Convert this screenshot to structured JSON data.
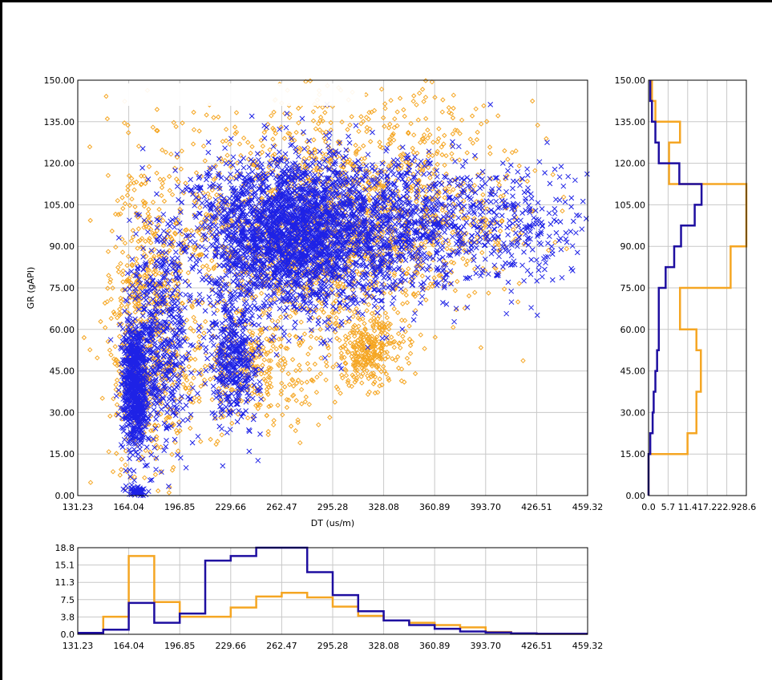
{
  "chart_data": [
    {
      "name": "crossplot",
      "type": "scatter",
      "xlabel": "DT (us/m)",
      "ylabel": "GR (gAPI)",
      "xlim": [
        131.23,
        459.32
      ],
      "ylim": [
        0,
        150
      ],
      "x_ticks": [
        "131.23",
        "164.04",
        "196.85",
        "229.66",
        "262.47",
        "295.28",
        "328.08",
        "360.89",
        "393.70",
        "426.51",
        "459.32"
      ],
      "y_ticks": [
        "0.00",
        "15.00",
        "30.00",
        "45.00",
        "60.00",
        "75.00",
        "90.00",
        "105.00",
        "120.00",
        "135.00",
        "150.00"
      ],
      "grid": true,
      "series": [
        {
          "marker": "diamond",
          "color": "#F5A623",
          "clusters": [
            {
              "cx": 280,
              "cy": 95,
              "sx": 45,
              "sy": 18,
              "n": 1400
            },
            {
              "cx": 175,
              "cy": 60,
              "sx": 12,
              "sy": 30,
              "n": 600
            },
            {
              "cx": 240,
              "cy": 45,
              "sx": 30,
              "sy": 10,
              "n": 350
            },
            {
              "cx": 318,
              "cy": 52,
              "sx": 12,
              "sy": 6,
              "n": 300
            },
            {
              "cx": 360,
              "cy": 100,
              "sx": 35,
              "sy": 15,
              "n": 400
            },
            {
              "cx": 300,
              "cy": 135,
              "sx": 60,
              "sy": 8,
              "n": 150
            }
          ]
        },
        {
          "marker": "x",
          "color": "#1E22E6",
          "clusters": [
            {
              "cx": 270,
              "cy": 95,
              "sx": 30,
              "sy": 14,
              "n": 2600
            },
            {
              "cx": 168,
              "cy": 40,
              "sx": 4,
              "sy": 12,
              "n": 700
            },
            {
              "cx": 185,
              "cy": 55,
              "sx": 10,
              "sy": 20,
              "n": 500
            },
            {
              "cx": 232,
              "cy": 50,
              "sx": 8,
              "sy": 12,
              "n": 400
            },
            {
              "cx": 350,
              "cy": 98,
              "sx": 30,
              "sy": 12,
              "n": 700
            },
            {
              "cx": 420,
              "cy": 95,
              "sx": 20,
              "sy": 12,
              "n": 200
            },
            {
              "cx": 170,
              "cy": 1.5,
              "sx": 3,
              "sy": 0.8,
              "n": 60
            }
          ]
        }
      ]
    },
    {
      "name": "gr-histogram",
      "type": "histogram",
      "x_ticks": [
        "0.0",
        "5.7",
        "11.4",
        "17.2",
        "22.9",
        "28.6"
      ],
      "xlim": [
        0,
        28.6
      ],
      "ylim": [
        0,
        150
      ],
      "bin_edges": [
        0,
        7.5,
        15,
        22.5,
        30,
        37.5,
        45,
        52.5,
        60,
        67.5,
        75,
        82.5,
        90,
        97.5,
        105,
        112.5,
        120,
        127.5,
        135,
        142.5,
        150
      ],
      "series": [
        {
          "color": "#F5A623",
          "values": [
            0,
            0,
            11.4,
            14.0,
            14.0,
            15.3,
            15.3,
            14.0,
            9.2,
            9.2,
            24.0,
            24.0,
            28.6,
            28.6,
            28.6,
            6.0,
            6.0,
            9.2,
            2.0,
            1.0
          ]
        },
        {
          "color": "#1E0EA0",
          "values": [
            0,
            0,
            0.5,
            1.2,
            1.5,
            2.0,
            2.5,
            3.0,
            3.0,
            3.0,
            5.0,
            7.5,
            9.5,
            13.5,
            15.5,
            9.0,
            3.0,
            2.0,
            1.0,
            0.5
          ]
        }
      ]
    },
    {
      "name": "dt-histogram",
      "type": "histogram",
      "y_ticks": [
        "0.0",
        "3.8",
        "7.5",
        "11.3",
        "15.1",
        "18.8"
      ],
      "ylim": [
        0,
        18.8
      ],
      "xlim": [
        131.23,
        459.32
      ],
      "bin_edges": [
        131.23,
        147.63,
        164.04,
        172.24,
        180.45,
        196.85,
        213.26,
        229.66,
        246.07,
        262.47,
        278.87,
        295.28,
        311.68,
        328.08,
        344.49,
        360.89,
        377.29,
        393.7,
        410.1,
        426.51,
        442.91,
        459.32
      ],
      "series": [
        {
          "color": "#F5A623",
          "values": [
            0.3,
            3.8,
            17.0,
            17.0,
            7.0,
            3.8,
            3.8,
            5.8,
            8.2,
            9.0,
            8.0,
            6.0,
            4.0,
            3.0,
            2.5,
            2.0,
            1.5,
            0.5,
            0.2,
            0.1,
            0.1
          ]
        },
        {
          "color": "#1E0EA0",
          "values": [
            0.3,
            1.0,
            6.8,
            6.8,
            2.5,
            4.5,
            16.0,
            17.0,
            18.8,
            18.8,
            13.5,
            8.5,
            5.0,
            3.0,
            2.0,
            1.2,
            0.6,
            0.4,
            0.2,
            0.1,
            0.1
          ]
        }
      ]
    }
  ]
}
